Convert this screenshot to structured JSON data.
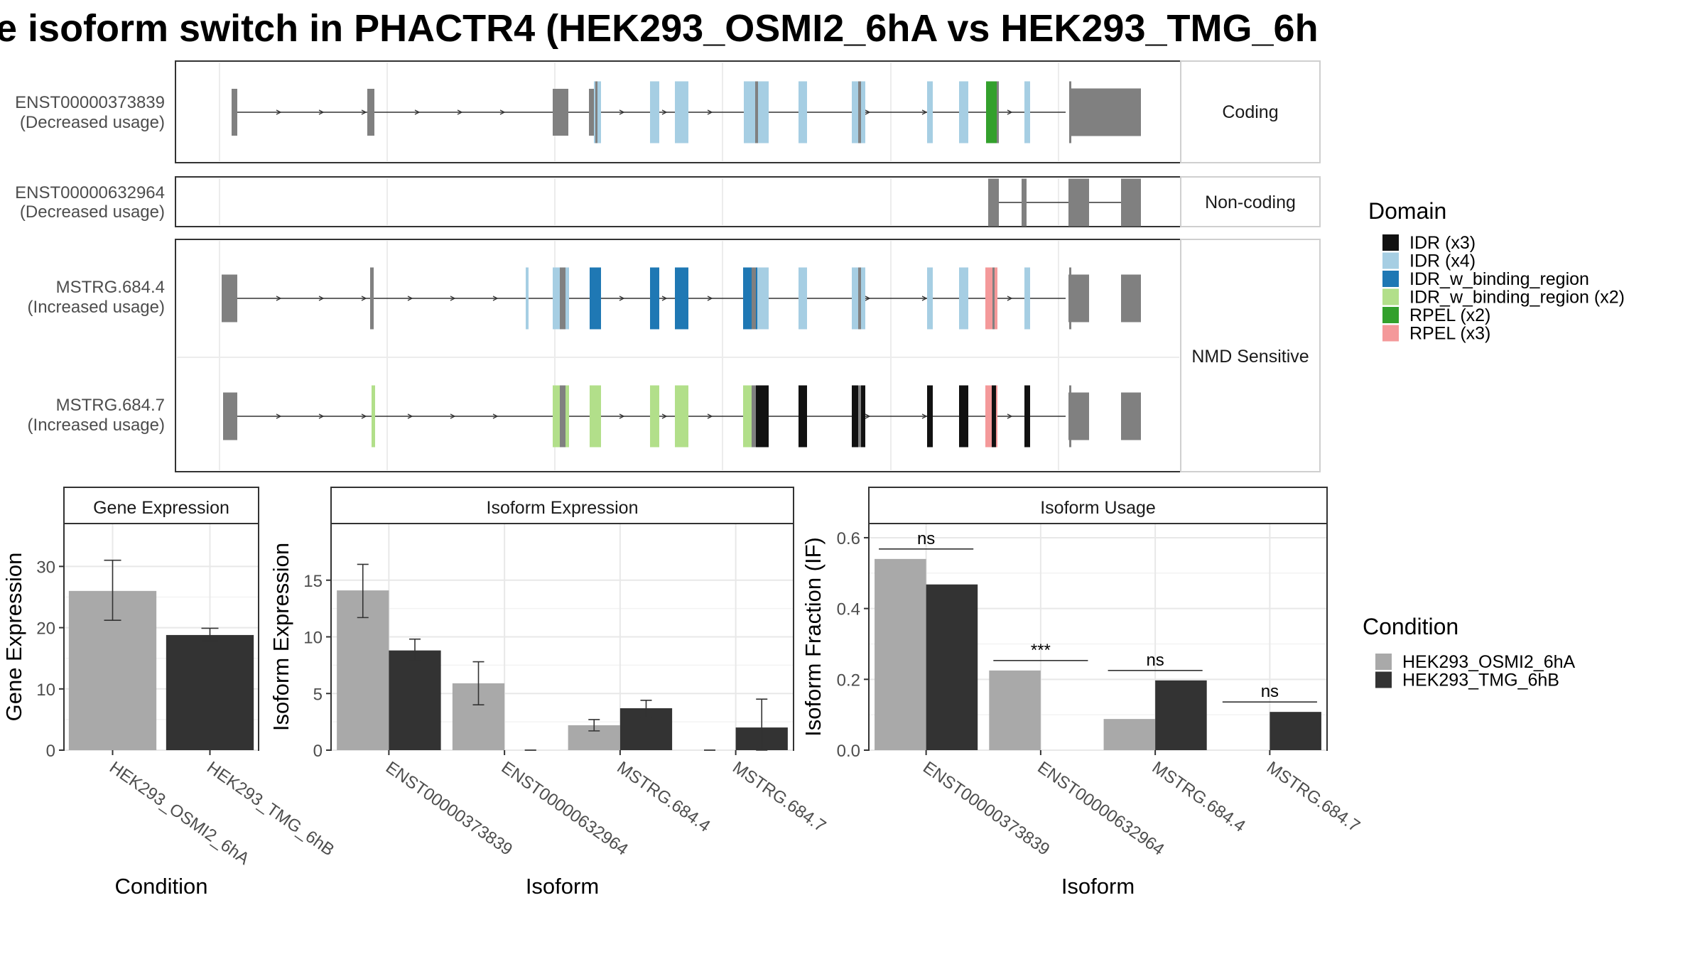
{
  "title": "e isoform switch in PHACTR4 (HEK293_OSMI2_6hA vs HEK293_TMG_6h",
  "colors": {
    "cond_a": "#A9A9A9",
    "cond_b": "#333333",
    "exon_gray": "#808080",
    "IDR_x3": "#111111",
    "IDR_x4": "#A6CEE3",
    "IDR_w_binding_region": "#1F78B4",
    "IDR_w_binding_region_x2": "#B2DF8A",
    "RPEL_x2": "#33A02C",
    "RPEL_x3": "#F4999A"
  },
  "transcripts": [
    {
      "name": "ENST00000373839",
      "usage": "(Decreased usage)"
    },
    {
      "name": "ENST00000632964",
      "usage": "(Decreased usage)"
    },
    {
      "name": "MSTRG.684.4",
      "usage": "(Increased usage)"
    },
    {
      "name": "MSTRG.684.7",
      "usage": "(Increased usage)"
    }
  ],
  "facets": {
    "coding": "Coding",
    "noncoding": "Non-coding",
    "nmd": "NMD Sensitive"
  },
  "legend_domain": {
    "title": "Domain",
    "items": [
      {
        "label": "IDR (x3)",
        "color_key": "IDR_x3"
      },
      {
        "label": "IDR (x4)",
        "color_key": "IDR_x4"
      },
      {
        "label": "IDR_w_binding_region",
        "color_key": "IDR_w_binding_region"
      },
      {
        "label": "IDR_w_binding_region (x2)",
        "color_key": "IDR_w_binding_region_x2"
      },
      {
        "label": "RPEL (x2)",
        "color_key": "RPEL_x2"
      },
      {
        "label": "RPEL (x3)",
        "color_key": "RPEL_x3"
      }
    ]
  },
  "legend_condition": {
    "title": "Condition",
    "items": [
      {
        "label": "HEK293_OSMI2_6hA",
        "color_key": "cond_a"
      },
      {
        "label": "HEK293_TMG_6hB",
        "color_key": "cond_b"
      }
    ]
  },
  "chart_data": [
    {
      "type": "bar",
      "title": "Gene Expression",
      "xlabel": "Condition",
      "ylabel": "Gene Expression",
      "categories": [
        "HEK293_OSMI2_6hA",
        "HEK293_TMG_6hB"
      ],
      "values": [
        26.0,
        18.8
      ],
      "error_low": [
        21.2,
        17.8
      ],
      "error_high": [
        31.0,
        19.9
      ],
      "ylim": [
        0,
        37
      ],
      "yticks": [
        0,
        10,
        20,
        30
      ]
    },
    {
      "type": "bar",
      "title": "Isoform Expression",
      "xlabel": "Isoform",
      "ylabel": "Isoform Expression",
      "categories": [
        "ENST00000373839",
        "ENST00000632964",
        "MSTRG.684.4",
        "MSTRG.684.7"
      ],
      "series": [
        {
          "name": "HEK293_OSMI2_6hA",
          "values": [
            14.1,
            5.9,
            2.2,
            0.0
          ],
          "error_low": [
            11.7,
            4.0,
            1.7,
            0.0
          ],
          "error_high": [
            16.4,
            7.8,
            2.7,
            0.0
          ]
        },
        {
          "name": "HEK293_TMG_6hB",
          "values": [
            8.8,
            0.0,
            3.7,
            2.0
          ],
          "error_low": [
            7.9,
            0.0,
            2.9,
            0.0
          ],
          "error_high": [
            9.8,
            0.0,
            4.4,
            4.5
          ]
        }
      ],
      "ylim": [
        0,
        20
      ],
      "yticks": [
        0,
        5,
        10,
        15
      ]
    },
    {
      "type": "bar",
      "title": "Isoform Usage",
      "xlabel": "Isoform",
      "ylabel": "Isoform Fraction (IF)",
      "categories": [
        "ENST00000373839",
        "ENST00000632964",
        "MSTRG.684.4",
        "MSTRG.684.7"
      ],
      "series": [
        {
          "name": "HEK293_OSMI2_6hA",
          "values": [
            0.54,
            0.225,
            0.088,
            0.0
          ]
        },
        {
          "name": "HEK293_TMG_6hB",
          "values": [
            0.468,
            0.0,
            0.197,
            0.108
          ]
        }
      ],
      "significance": [
        "ns",
        "***",
        "ns",
        "ns"
      ],
      "ylim": [
        0,
        0.64
      ],
      "yticks": [
        0.0,
        0.2,
        0.4,
        0.6
      ]
    }
  ]
}
